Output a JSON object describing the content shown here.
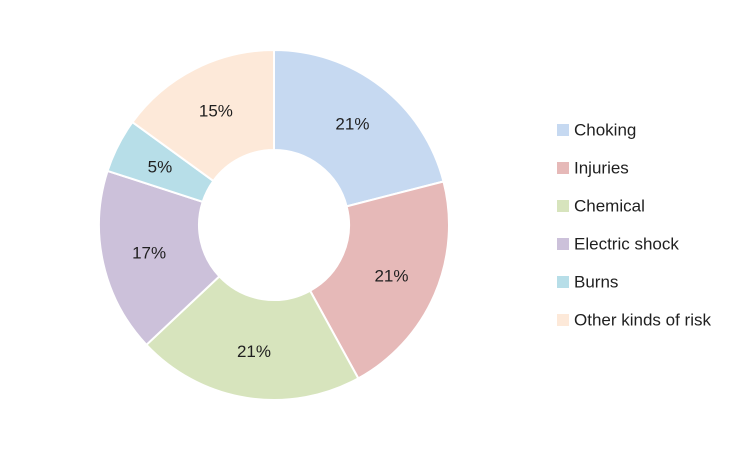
{
  "chart_data": {
    "type": "pie",
    "variant": "donut",
    "title": "",
    "legend_position": "right",
    "slices": [
      {
        "label": "Choking",
        "value": 21,
        "display": "21%",
        "color": "#c6d9f1"
      },
      {
        "label": "Injuries",
        "value": 21,
        "display": "21%",
        "color": "#e6b9b8"
      },
      {
        "label": "Chemical",
        "value": 21,
        "display": "21%",
        "color": "#d7e4bd"
      },
      {
        "label": "Electric shock",
        "value": 17,
        "display": "17%",
        "color": "#ccc1da"
      },
      {
        "label": "Burns",
        "value": 5,
        "display": "5%",
        "color": "#b7dee8"
      },
      {
        "label": "Other kinds of risk",
        "value": 15,
        "display": "15%",
        "color": "#fde9d9"
      }
    ]
  }
}
